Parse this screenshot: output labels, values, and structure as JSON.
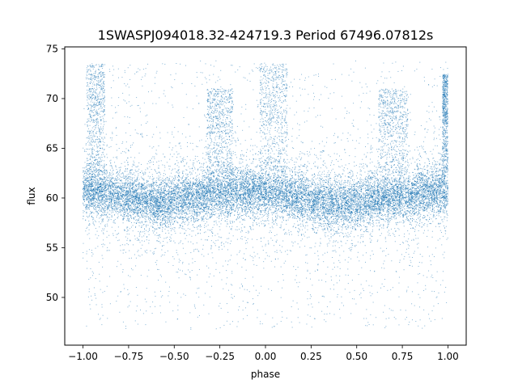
{
  "chart_data": {
    "type": "scatter",
    "title": "1SWASPJ094018.32-424719.3 Period 67496.07812s",
    "xlabel": "phase",
    "ylabel": "flux",
    "xlim": [
      -1.1,
      1.1
    ],
    "ylim": [
      45.2,
      75.2
    ],
    "x_ticks": [
      -1.0,
      -0.75,
      -0.5,
      -0.25,
      0.0,
      0.25,
      0.5,
      0.75,
      1.0
    ],
    "x_tick_labels": [
      "−1.00",
      "−0.75",
      "−0.50",
      "−0.25",
      "0.00",
      "0.25",
      "0.50",
      "0.75",
      "1.00"
    ],
    "y_ticks": [
      50,
      55,
      60,
      65,
      70,
      75
    ],
    "y_tick_labels": [
      "50",
      "55",
      "60",
      "65",
      "70",
      "75"
    ],
    "grid": false,
    "legend": "none",
    "marker_color": "#1f77b4",
    "phase_range": [
      -1.0,
      1.0
    ],
    "flux_band": {
      "center": 60.0,
      "spread": 2.1
    },
    "flux_range": [
      46.8,
      73.8
    ],
    "brightening_clumps": [
      {
        "phase_min": -0.98,
        "phase_max": -0.88,
        "flux_min": 67.5,
        "flux_max": 73.5
      },
      {
        "phase_min": -0.32,
        "phase_max": -0.18,
        "flux_min": 66.5,
        "flux_max": 71.0
      },
      {
        "phase_min": -0.03,
        "phase_max": 0.12,
        "flux_min": 67.5,
        "flux_max": 73.5
      },
      {
        "phase_min": 0.62,
        "phase_max": 0.78,
        "flux_min": 66.5,
        "flux_max": 71.0
      },
      {
        "phase_min": 0.97,
        "phase_max": 1.0,
        "flux_min": 67.5,
        "flux_max": 72.5
      }
    ],
    "trend_points": [
      {
        "phase": -1.0,
        "flux": 60.8
      },
      {
        "phase": -0.75,
        "flux": 60.2
      },
      {
        "phase": -0.6,
        "flux": 59.5
      },
      {
        "phase": -0.25,
        "flux": 60.5
      },
      {
        "phase": 0.0,
        "flux": 60.7
      },
      {
        "phase": 0.25,
        "flux": 59.8
      },
      {
        "phase": 0.4,
        "flux": 59.4
      },
      {
        "phase": 0.75,
        "flux": 60.2
      },
      {
        "phase": 1.0,
        "flux": 60.8
      }
    ]
  }
}
